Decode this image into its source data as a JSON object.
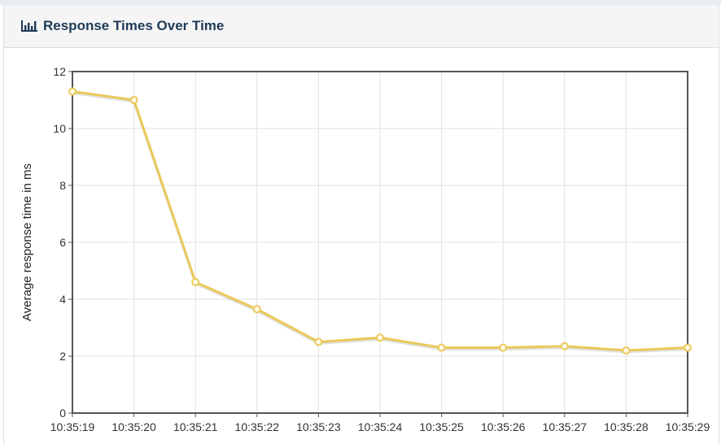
{
  "panel": {
    "title": "Response Times Over Time",
    "icon": "bar-chart-icon"
  },
  "chart_data": {
    "type": "line",
    "ylabel": "Average response time in ms",
    "xlabel": "",
    "ylim": [
      0,
      12
    ],
    "yticks": [
      0,
      2,
      4,
      6,
      8,
      10,
      12
    ],
    "grid": true,
    "categories": [
      "10:35:19",
      "10:35:20",
      "10:35:21",
      "10:35:22",
      "10:35:23",
      "10:35:24",
      "10:35:25",
      "10:35:26",
      "10:35:27",
      "10:35:28",
      "10:35:29"
    ],
    "series": [
      {
        "color": "#ebc85a",
        "values": [
          11.3,
          11.0,
          4.6,
          3.65,
          2.5,
          2.65,
          2.3,
          2.3,
          2.35,
          2.2,
          2.3
        ]
      }
    ]
  }
}
